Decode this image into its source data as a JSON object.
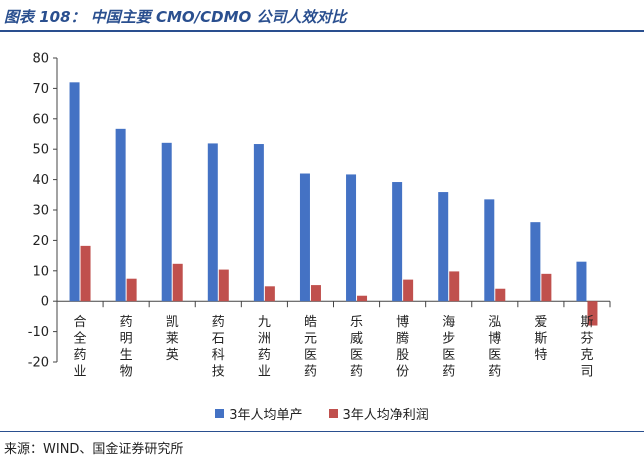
{
  "figure": {
    "title": "图表 108：  中国主要 CMO/CDMO 公司人效对比",
    "source": "来源：WIND、国金证券研究所"
  },
  "colors": {
    "series1": "#4472c4",
    "series2": "#c0504d",
    "axis": "#444444"
  },
  "chart_data": {
    "type": "bar",
    "categories": [
      "合全药业",
      "药明生物",
      "凯莱英",
      "药石科技",
      "九洲药业",
      "皓元医药",
      "乐威医药",
      "博腾股份",
      "海步医药",
      "泓博医药",
      "爱斯特",
      "斯芬克司"
    ],
    "series": [
      {
        "name": "3年人均单产",
        "values": [
          72,
          56.7,
          52.1,
          51.9,
          51.7,
          42,
          41.7,
          39.2,
          35.9,
          33.5,
          26,
          13
        ]
      },
      {
        "name": "3年人均净利润",
        "values": [
          18.2,
          7.4,
          12.3,
          10.4,
          4.9,
          5.3,
          1.8,
          7.1,
          9.8,
          4.1,
          9,
          -8
        ]
      }
    ],
    "ylim": [
      -20,
      80
    ],
    "yticks": [
      -20,
      -10,
      0,
      10,
      20,
      30,
      40,
      50,
      60,
      70,
      80
    ],
    "xlabel": "",
    "ylabel": "",
    "grid": false,
    "legend": "bottom"
  }
}
